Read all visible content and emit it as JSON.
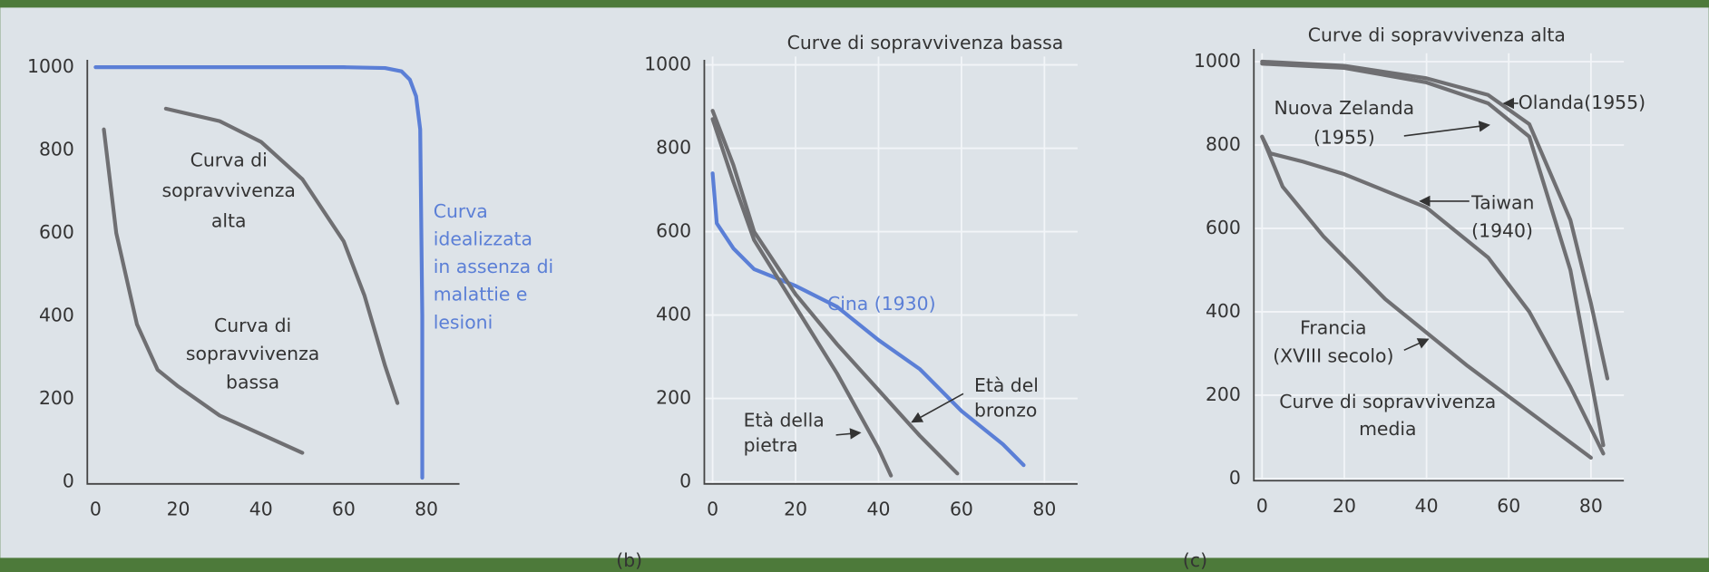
{
  "chart_data": [
    {
      "type": "line",
      "grid": false,
      "xlim": [
        -2,
        88
      ],
      "ylim": [
        -5,
        1010
      ],
      "xticks": [
        0,
        20,
        40,
        60,
        80
      ],
      "yticks": [
        0,
        200,
        400,
        600,
        800,
        1000
      ],
      "series": [
        {
          "label": [
            "Curva",
            "idealizzata",
            "in assenza di",
            "malattie e",
            "lesioni"
          ],
          "color": "#5b7fd6",
          "x": [
            0,
            20,
            40,
            60,
            70,
            74,
            76,
            77.5,
            78.5,
            79,
            79
          ],
          "values": [
            1000,
            1000,
            1000,
            1000,
            998,
            990,
            970,
            930,
            850,
            400,
            10
          ]
        },
        {
          "label": [
            "Curva di",
            "sopravvivenza",
            "alta"
          ],
          "color": "#6f6f72",
          "x": [
            17,
            30,
            40,
            50,
            60,
            65,
            70,
            73
          ],
          "values": [
            900,
            870,
            820,
            730,
            580,
            450,
            280,
            190
          ]
        },
        {
          "label": [
            "Curva di",
            "sopravvivenza",
            "bassa"
          ],
          "color": "#6f6f72",
          "x": [
            2,
            5,
            10,
            15,
            20,
            30,
            40,
            50
          ],
          "values": [
            850,
            600,
            380,
            270,
            230,
            160,
            115,
            70
          ]
        }
      ]
    },
    {
      "type": "line",
      "grid": true,
      "title": "Curve di sopravvivenza bassa",
      "xlim": [
        -2,
        88
      ],
      "ylim": [
        -5,
        1020
      ],
      "xticks": [
        0,
        20,
        40,
        60,
        80
      ],
      "yticks": [
        0,
        200,
        400,
        600,
        800,
        1000
      ],
      "series": [
        {
          "label": [
            "Cina (1930)"
          ],
          "color": "#5b7fd6",
          "x": [
            0,
            1,
            5,
            10,
            20,
            30,
            40,
            50,
            60,
            70,
            75
          ],
          "values": [
            740,
            620,
            560,
            510,
            470,
            420,
            340,
            270,
            170,
            90,
            40
          ]
        },
        {
          "label": [
            "Età del",
            "bronzo"
          ],
          "color": "#6f6f72",
          "x": [
            0,
            5,
            10,
            20,
            30,
            40,
            50,
            59
          ],
          "values": [
            890,
            760,
            600,
            450,
            330,
            220,
            110,
            20
          ]
        },
        {
          "label": [
            "Età della",
            "pietra"
          ],
          "color": "#6f6f72",
          "x": [
            0,
            5,
            10,
            20,
            30,
            40,
            43
          ],
          "values": [
            870,
            720,
            580,
            420,
            260,
            80,
            15
          ]
        }
      ]
    },
    {
      "type": "line",
      "grid": true,
      "title": "Curve di sopravvivenza alta",
      "xlim": [
        -2,
        88
      ],
      "ylim": [
        -5,
        1020
      ],
      "xticks": [
        0,
        20,
        40,
        60,
        80
      ],
      "yticks": [
        0,
        200,
        400,
        600,
        800,
        1000
      ],
      "series": [
        {
          "label": [
            "Olanda(1955)"
          ],
          "color": "#6f6f72",
          "x": [
            0,
            20,
            40,
            55,
            65,
            75,
            80,
            84
          ],
          "values": [
            1000,
            990,
            960,
            920,
            850,
            620,
            420,
            240
          ]
        },
        {
          "label": [
            "Nuova Zelanda",
            "(1955)"
          ],
          "color": "#6f6f72",
          "x": [
            0,
            20,
            40,
            55,
            65,
            75,
            83
          ],
          "values": [
            995,
            985,
            950,
            900,
            820,
            500,
            80
          ]
        },
        {
          "label": [
            "Taiwan",
            "(1940)"
          ],
          "color": "#6f6f72",
          "x": [
            0,
            2,
            10,
            20,
            40,
            55,
            65,
            75,
            83
          ],
          "values": [
            820,
            780,
            760,
            730,
            650,
            530,
            400,
            220,
            60
          ]
        },
        {
          "label": [
            "Francia",
            "(XVIII secolo)"
          ],
          "color": "#6f6f72",
          "x": [
            0,
            5,
            15,
            30,
            50,
            65,
            80
          ],
          "values": [
            820,
            700,
            580,
            430,
            270,
            160,
            50
          ]
        }
      ],
      "annotations": [
        [
          "Curve di sopravvivenza",
          "media"
        ]
      ]
    }
  ],
  "captions": [
    "(b)",
    "(c)"
  ]
}
